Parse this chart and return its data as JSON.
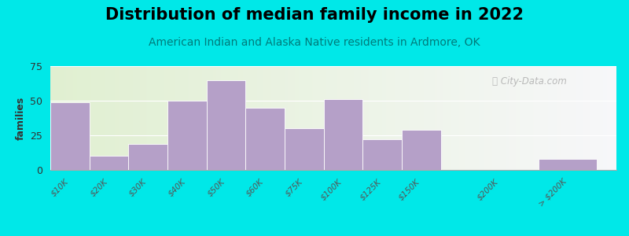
{
  "title": "Distribution of median family income in 2022",
  "subtitle": "American Indian and Alaska Native residents in Ardmore, OK",
  "ylabel": "families",
  "bin_labels": [
    "$10K",
    "$20K",
    "$30K",
    "$40K",
    "$50K",
    "$60K",
    "$75K",
    "$100K",
    "$125K",
    "$150K",
    "$200K",
    "> $200K"
  ],
  "values": [
    49,
    10,
    19,
    50,
    65,
    45,
    30,
    51,
    22,
    29,
    0,
    8
  ],
  "bar_color": "#b5a0c8",
  "background_outer": "#00e8e8",
  "ylim": [
    0,
    75
  ],
  "yticks": [
    0,
    25,
    50,
    75
  ],
  "title_fontsize": 15,
  "subtitle_fontsize": 10,
  "ylabel_fontsize": 9,
  "watermark": "City-Data.com"
}
